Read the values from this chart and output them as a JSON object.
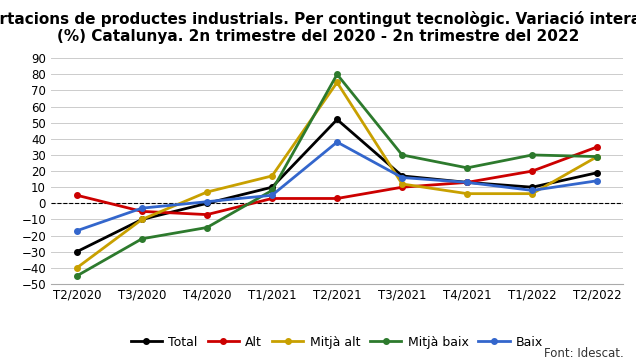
{
  "title": "Exportacions de productes industrials. Per contingut tecnològic. Variació interanual\n(%) Catalunya. 2n trimestre del 2020 - 2n trimestre del 2022",
  "x_labels": [
    "T2/2020",
    "T3/2020",
    "T4/2020",
    "T1/2021",
    "T2/2021",
    "T3/2021",
    "T4/2021",
    "T1/2022",
    "T2/2022"
  ],
  "series": {
    "Total": {
      "values": [
        -30,
        -10,
        0,
        10,
        52,
        17,
        13,
        10,
        19
      ],
      "color": "#000000",
      "linewidth": 2.0
    },
    "Alt": {
      "values": [
        5,
        -5,
        -7,
        3,
        3,
        10,
        13,
        20,
        35
      ],
      "color": "#cc0000",
      "linewidth": 2.0
    },
    "Mitjà alt": {
      "values": [
        -40,
        -10,
        7,
        17,
        75,
        12,
        6,
        6,
        29
      ],
      "color": "#c8a000",
      "linewidth": 2.0
    },
    "Mitjà baix": {
      "values": [
        -45,
        -22,
        -15,
        8,
        80,
        30,
        22,
        30,
        29
      ],
      "color": "#2d7a2d",
      "linewidth": 2.0
    },
    "Baix": {
      "values": [
        -17,
        -3,
        1,
        5,
        38,
        16,
        13,
        8,
        14
      ],
      "color": "#3366cc",
      "linewidth": 2.0
    }
  },
  "ylim": [
    -50,
    90
  ],
  "yticks": [
    -50,
    -40,
    -30,
    -20,
    -10,
    0,
    10,
    20,
    30,
    40,
    50,
    60,
    70,
    80,
    90
  ],
  "background_color": "#ffffff",
  "grid_color": "#cccccc",
  "title_fontsize": 11,
  "tick_fontsize": 8.5,
  "legend_fontsize": 9,
  "font_source": "Font: Idescat.",
  "marker": "o",
  "marker_size": 4
}
